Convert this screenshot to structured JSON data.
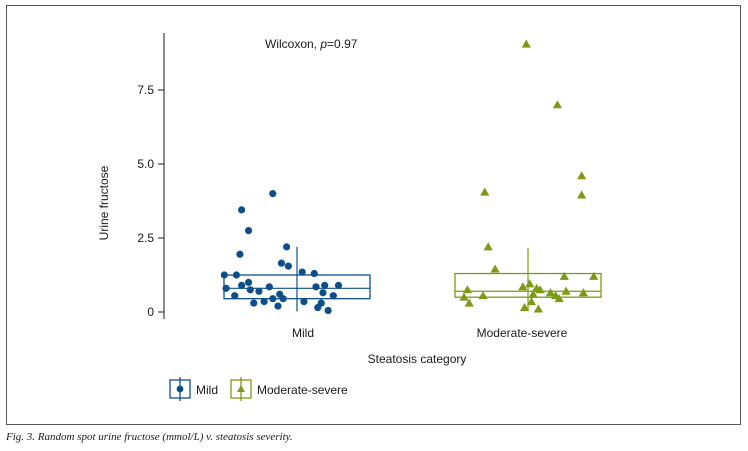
{
  "figure": {
    "caption": "Fig. 3. Random spot urine fructose (mmol/L) v. steatosis severity."
  },
  "colors": {
    "mild": "#0e4f8b",
    "moderate_severe": "#7d9a14",
    "axis": "#1a1a1a",
    "frame": "#555555"
  },
  "chart_data": {
    "type": "scatter",
    "title": "",
    "annotation": {
      "prefix": "Wilcoxon, ",
      "p_label": "p",
      "p_value": "=0.97"
    },
    "xlabel": "Steatosis category",
    "ylabel": "Urine fructose",
    "categories": [
      "Mild",
      "Moderate-severe"
    ],
    "y_ticks": [
      0,
      2.5,
      5.0,
      7.5
    ],
    "y_tick_labels": [
      "0",
      "2.5",
      "5.0",
      "7.5"
    ],
    "ylim": [
      -0.15,
      9.3
    ],
    "legend": {
      "position": "bottom-left",
      "entries": [
        "Mild",
        "Moderate-severe"
      ]
    },
    "series": [
      {
        "name": "Mild",
        "marker": "circle",
        "box": {
          "q1": 0.45,
          "median": 0.8,
          "q3": 1.25,
          "whisker_low": 0.02,
          "whisker_high": 2.2
        },
        "points": [
          {
            "x": -0.14,
            "y": 4.0
          },
          {
            "x": -0.32,
            "y": 3.45
          },
          {
            "x": -0.28,
            "y": 2.75
          },
          {
            "x": -0.06,
            "y": 2.2
          },
          {
            "x": -0.33,
            "y": 1.95
          },
          {
            "x": -0.09,
            "y": 1.65
          },
          {
            "x": -0.05,
            "y": 1.55
          },
          {
            "x": 0.03,
            "y": 1.35
          },
          {
            "x": 0.1,
            "y": 1.3
          },
          {
            "x": -0.42,
            "y": 1.25
          },
          {
            "x": -0.35,
            "y": 1.25
          },
          {
            "x": -0.28,
            "y": 1.0
          },
          {
            "x": 0.16,
            "y": 0.9
          },
          {
            "x": 0.24,
            "y": 0.9
          },
          {
            "x": -0.32,
            "y": 0.9
          },
          {
            "x": 0.11,
            "y": 0.85
          },
          {
            "x": -0.16,
            "y": 0.85
          },
          {
            "x": -0.41,
            "y": 0.8
          },
          {
            "x": -0.27,
            "y": 0.75
          },
          {
            "x": -0.22,
            "y": 0.7
          },
          {
            "x": 0.15,
            "y": 0.65
          },
          {
            "x": -0.1,
            "y": 0.6
          },
          {
            "x": -0.36,
            "y": 0.55
          },
          {
            "x": 0.21,
            "y": 0.55
          },
          {
            "x": -0.14,
            "y": 0.45
          },
          {
            "x": -0.08,
            "y": 0.45
          },
          {
            "x": -0.19,
            "y": 0.35
          },
          {
            "x": 0.04,
            "y": 0.35
          },
          {
            "x": -0.25,
            "y": 0.3
          },
          {
            "x": 0.14,
            "y": 0.3
          },
          {
            "x": -0.11,
            "y": 0.2
          },
          {
            "x": 0.12,
            "y": 0.15
          },
          {
            "x": 0.18,
            "y": 0.05
          }
        ]
      },
      {
        "name": "Moderate-severe",
        "marker": "triangle",
        "box": {
          "q1": 0.5,
          "median": 0.7,
          "q3": 1.3,
          "whisker_low": 0.05,
          "whisker_high": 2.15
        },
        "points": [
          {
            "x": -0.01,
            "y": 9.05
          },
          {
            "x": 0.17,
            "y": 7.0
          },
          {
            "x": 0.31,
            "y": 4.6
          },
          {
            "x": 0.31,
            "y": 3.95
          },
          {
            "x": -0.25,
            "y": 4.05
          },
          {
            "x": -0.23,
            "y": 2.2
          },
          {
            "x": -0.19,
            "y": 1.45
          },
          {
            "x": 0.21,
            "y": 1.2
          },
          {
            "x": 0.38,
            "y": 1.2
          },
          {
            "x": 0.01,
            "y": 0.95
          },
          {
            "x": -0.03,
            "y": 0.85
          },
          {
            "x": 0.05,
            "y": 0.8
          },
          {
            "x": 0.07,
            "y": 0.75
          },
          {
            "x": -0.35,
            "y": 0.75
          },
          {
            "x": 0.22,
            "y": 0.7
          },
          {
            "x": 0.13,
            "y": 0.65
          },
          {
            "x": 0.32,
            "y": 0.65
          },
          {
            "x": 0.03,
            "y": 0.6
          },
          {
            "x": -0.26,
            "y": 0.55
          },
          {
            "x": 0.16,
            "y": 0.55
          },
          {
            "x": -0.37,
            "y": 0.5
          },
          {
            "x": 0.18,
            "y": 0.45
          },
          {
            "x": 0.02,
            "y": 0.35
          },
          {
            "x": -0.34,
            "y": 0.3
          },
          {
            "x": -0.02,
            "y": 0.15
          },
          {
            "x": 0.06,
            "y": 0.1
          }
        ]
      }
    ]
  }
}
